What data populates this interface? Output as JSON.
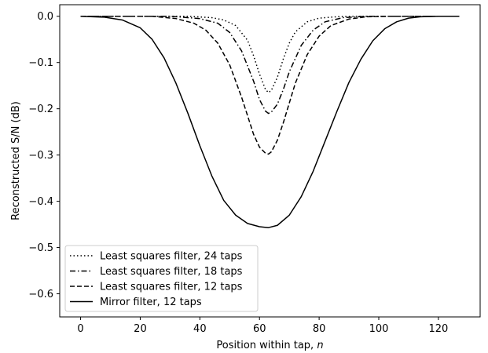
{
  "chart_data": {
    "type": "line",
    "title": "",
    "xlabel": "Position within tap, ",
    "xlabel_var": "n",
    "ylabel": "Reconstructed S/N (dB)",
    "xlim": [
      -7,
      134
    ],
    "ylim": [
      -0.65,
      0.025
    ],
    "xticks": [
      0,
      20,
      40,
      60,
      80,
      100,
      120
    ],
    "xtick_labels": [
      "0",
      "20",
      "40",
      "60",
      "80",
      "100",
      "120"
    ],
    "yticks": [
      0.0,
      -0.1,
      -0.2,
      -0.3,
      -0.4,
      -0.5,
      -0.6
    ],
    "ytick_labels": [
      "0.0",
      "−0.1",
      "−0.2",
      "−0.3",
      "−0.4",
      "−0.5",
      "−0.6"
    ],
    "grid": false,
    "legend_position": "lower-left",
    "series": [
      {
        "name": "Least squares filter, 24 taps",
        "style": "dotted",
        "x": [
          0,
          36,
          44,
          48,
          52,
          56,
          58,
          60,
          62,
          63,
          64,
          66,
          68,
          70,
          72,
          76,
          80,
          86,
          92,
          127
        ],
        "y": [
          0.0,
          0.0,
          -0.003,
          -0.008,
          -0.02,
          -0.052,
          -0.085,
          -0.125,
          -0.158,
          -0.165,
          -0.16,
          -0.132,
          -0.092,
          -0.058,
          -0.034,
          -0.012,
          -0.004,
          -0.001,
          0.0,
          0.0
        ]
      },
      {
        "name": "Least squares filter, 18 taps",
        "style": "dashdot",
        "x": [
          0,
          30,
          40,
          46,
          50,
          54,
          58,
          60,
          62,
          63,
          64,
          66,
          68,
          70,
          74,
          78,
          82,
          88,
          96,
          127
        ],
        "y": [
          0.0,
          0.0,
          -0.005,
          -0.015,
          -0.035,
          -0.075,
          -0.14,
          -0.18,
          -0.205,
          -0.21,
          -0.207,
          -0.19,
          -0.158,
          -0.12,
          -0.063,
          -0.03,
          -0.012,
          -0.003,
          0.0,
          0.0
        ]
      },
      {
        "name": "Least squares filter, 12 taps",
        "style": "dashed",
        "x": [
          0,
          24,
          32,
          38,
          42,
          46,
          50,
          54,
          58,
          60,
          62,
          63,
          64,
          66,
          68,
          72,
          76,
          80,
          84,
          90,
          96,
          104,
          127
        ],
        "y": [
          0.0,
          0.0,
          -0.005,
          -0.015,
          -0.03,
          -0.058,
          -0.105,
          -0.175,
          -0.255,
          -0.283,
          -0.296,
          -0.298,
          -0.293,
          -0.268,
          -0.23,
          -0.145,
          -0.083,
          -0.043,
          -0.02,
          -0.006,
          -0.001,
          0.0,
          0.0
        ]
      },
      {
        "name": "Mirror filter, 12 taps",
        "style": "solid",
        "x": [
          0,
          8,
          14,
          20,
          24,
          28,
          32,
          36,
          40,
          44,
          48,
          52,
          56,
          60,
          63,
          66,
          70,
          74,
          78,
          82,
          86,
          90,
          94,
          98,
          102,
          106,
          110,
          114,
          120,
          127
        ],
        "y": [
          0.0,
          -0.002,
          -0.008,
          -0.025,
          -0.05,
          -0.09,
          -0.145,
          -0.21,
          -0.28,
          -0.345,
          -0.398,
          -0.43,
          -0.448,
          -0.455,
          -0.457,
          -0.452,
          -0.43,
          -0.39,
          -0.335,
          -0.27,
          -0.205,
          -0.143,
          -0.093,
          -0.053,
          -0.027,
          -0.012,
          -0.004,
          -0.001,
          0.0,
          0.0
        ]
      }
    ]
  }
}
